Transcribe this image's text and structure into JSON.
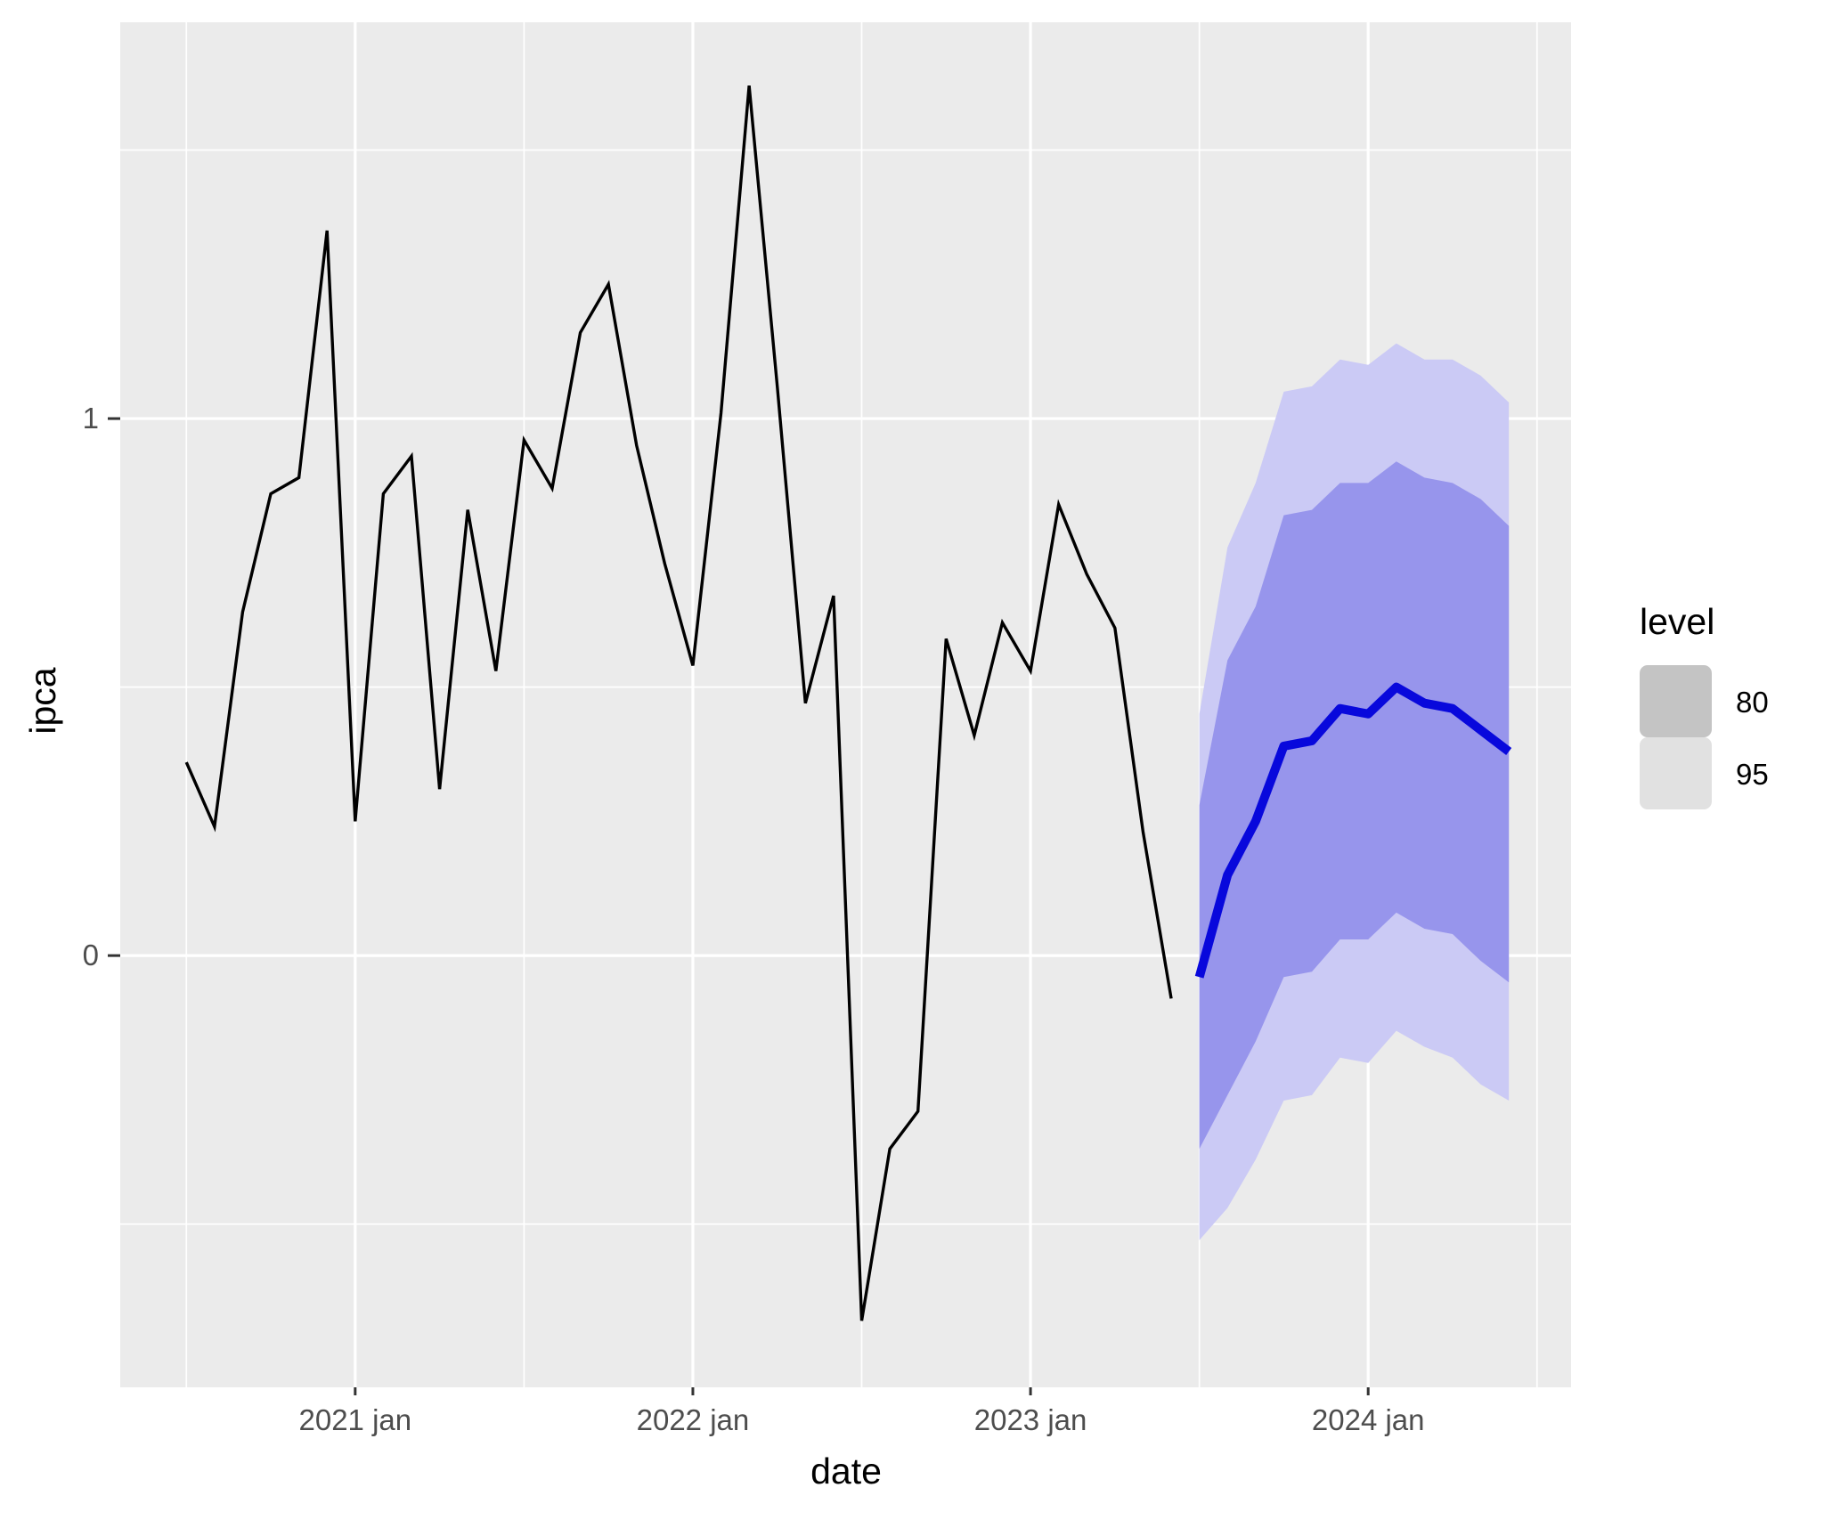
{
  "chart_data": {
    "type": "line",
    "title": "",
    "xlabel": "date",
    "ylabel": "ipca",
    "grid": "on",
    "legend_position": "right",
    "background": {
      "page_fill": "#FFFFFF",
      "panel_fill": "#EBEBEB",
      "grid_color": "#FFFFFF",
      "tick_color": "#333333",
      "tick_label_color": "#4D4D4D"
    },
    "x_axis": {
      "unit": "months since 2020-07",
      "domain": [
        -2.35,
        49.21
      ],
      "major_ticks": [
        {
          "label": "2021 jan",
          "month_index": 6
        },
        {
          "label": "2022 jan",
          "month_index": 18
        },
        {
          "label": "2023 jan",
          "month_index": 30
        },
        {
          "label": "2024 jan",
          "month_index": 42
        }
      ],
      "minor_gridline_month_index": [
        0,
        12,
        24,
        36,
        48
      ]
    },
    "y_axis": {
      "domain": [
        -0.804,
        1.738
      ],
      "major_ticks": [
        {
          "label": "1",
          "value": 1
        },
        {
          "label": "0",
          "value": 0
        }
      ],
      "minor_gridline_values": [
        -0.5,
        0.5,
        1.5
      ]
    },
    "historical": {
      "name": "ipca",
      "color": "#000000",
      "stroke_width": 3.4,
      "start_date": "2020-07",
      "start_month_index": 0,
      "values": [
        0.36,
        0.24,
        0.64,
        0.86,
        0.89,
        1.35,
        0.25,
        0.86,
        0.93,
        0.31,
        0.83,
        0.53,
        0.96,
        0.87,
        1.16,
        1.25,
        0.95,
        0.73,
        0.54,
        1.01,
        1.62,
        1.06,
        0.47,
        0.67,
        -0.68,
        -0.36,
        -0.29,
        0.59,
        0.41,
        0.62,
        0.53,
        0.84,
        0.71,
        0.61,
        0.23,
        -0.08
      ]
    },
    "forecast": {
      "name": "forecast-mean",
      "color": "#0808DC",
      "stroke_width": 10,
      "start_date": "2023-07",
      "start_month_index": 36,
      "mean": [
        -0.04,
        0.15,
        0.25,
        0.39,
        0.4,
        0.46,
        0.45,
        0.5,
        0.47,
        0.46,
        0.42,
        0.38
      ],
      "intervals": [
        {
          "level": "95",
          "fill": "#CBCAF5",
          "upper": [
            0.45,
            0.76,
            0.88,
            1.05,
            1.06,
            1.11,
            1.1,
            1.14,
            1.11,
            1.11,
            1.08,
            1.03
          ],
          "lower": [
            -0.53,
            -0.47,
            -0.38,
            -0.27,
            -0.26,
            -0.19,
            -0.2,
            -0.14,
            -0.17,
            -0.19,
            -0.24,
            -0.27
          ]
        },
        {
          "level": "80",
          "fill": "#9795EC",
          "upper": [
            0.28,
            0.55,
            0.65,
            0.82,
            0.83,
            0.88,
            0.88,
            0.92,
            0.89,
            0.88,
            0.85,
            0.8
          ],
          "lower": [
            -0.36,
            -0.26,
            -0.16,
            -0.04,
            -0.03,
            0.03,
            0.03,
            0.08,
            0.05,
            0.04,
            -0.01,
            -0.05
          ]
        }
      ]
    },
    "legend": {
      "title": "level",
      "entries": [
        {
          "label": "80",
          "key_fill": "#C4C4C4"
        },
        {
          "label": "95",
          "key_fill": "#E1E1E1"
        }
      ]
    }
  }
}
